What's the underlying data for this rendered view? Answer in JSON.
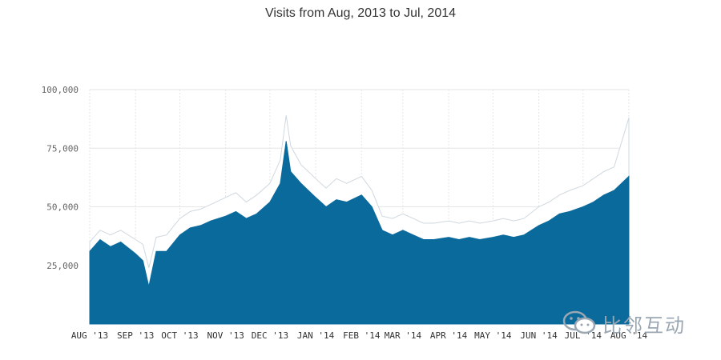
{
  "chart_data": {
    "type": "area",
    "title": "Visits from Aug, 2013 to Jul, 2014",
    "xlabel": "",
    "ylabel": "",
    "ylim": [
      0,
      100000
    ],
    "y_ticks": [
      "100,000",
      "75,000",
      "50,000",
      "25,000"
    ],
    "y_tick_values": [
      100000,
      75000,
      50000,
      25000
    ],
    "x_ticks": [
      "AUG '13",
      "SEP '13",
      "OCT '13",
      "NOV '13",
      "DEC '13",
      "JAN '14",
      "FEB '14",
      "MAR '14",
      "APR '14",
      "MAY '14",
      "JUN '14",
      "JUL '14",
      "AUG '14"
    ],
    "grid": true,
    "series": [
      {
        "color": "#0b6a9c",
        "points": [
          [
            "2013-08-01",
            31000
          ],
          [
            "2013-08-08",
            36000
          ],
          [
            "2013-08-15",
            33000
          ],
          [
            "2013-08-22",
            35000
          ],
          [
            "2013-09-01",
            30000
          ],
          [
            "2013-09-06",
            27000
          ],
          [
            "2013-09-10",
            16000
          ],
          [
            "2013-09-15",
            31000
          ],
          [
            "2013-09-22",
            31000
          ],
          [
            "2013-10-01",
            38000
          ],
          [
            "2013-10-08",
            41000
          ],
          [
            "2013-10-15",
            42000
          ],
          [
            "2013-10-22",
            44000
          ],
          [
            "2013-11-01",
            46000
          ],
          [
            "2013-11-08",
            48000
          ],
          [
            "2013-11-15",
            45000
          ],
          [
            "2013-11-22",
            47000
          ],
          [
            "2013-12-01",
            52000
          ],
          [
            "2013-12-08",
            60000
          ],
          [
            "2013-12-12",
            78000
          ],
          [
            "2013-12-15",
            65000
          ],
          [
            "2013-12-22",
            60000
          ],
          [
            "2014-01-01",
            54000
          ],
          [
            "2014-01-08",
            50000
          ],
          [
            "2014-01-15",
            53000
          ],
          [
            "2014-01-22",
            52000
          ],
          [
            "2014-02-01",
            55000
          ],
          [
            "2014-02-08",
            50000
          ],
          [
            "2014-02-15",
            40000
          ],
          [
            "2014-02-22",
            38000
          ],
          [
            "2014-03-01",
            40000
          ],
          [
            "2014-03-08",
            38000
          ],
          [
            "2014-03-15",
            36000
          ],
          [
            "2014-03-22",
            36000
          ],
          [
            "2014-04-01",
            37000
          ],
          [
            "2014-04-08",
            36000
          ],
          [
            "2014-04-15",
            37000
          ],
          [
            "2014-04-22",
            36000
          ],
          [
            "2014-05-01",
            37000
          ],
          [
            "2014-05-08",
            38000
          ],
          [
            "2014-05-15",
            37000
          ],
          [
            "2014-05-22",
            38000
          ],
          [
            "2014-06-01",
            42000
          ],
          [
            "2014-06-08",
            44000
          ],
          [
            "2014-06-15",
            47000
          ],
          [
            "2014-06-22",
            48000
          ],
          [
            "2014-07-01",
            50000
          ],
          [
            "2014-07-08",
            52000
          ],
          [
            "2014-07-15",
            55000
          ],
          [
            "2014-07-22",
            57000
          ],
          [
            "2014-08-01",
            63000
          ]
        ]
      },
      {
        "color": "#ffffff",
        "points": [
          [
            "2013-08-01",
            35000
          ],
          [
            "2013-08-08",
            40000
          ],
          [
            "2013-08-15",
            38000
          ],
          [
            "2013-08-22",
            40000
          ],
          [
            "2013-09-01",
            36000
          ],
          [
            "2013-09-06",
            34000
          ],
          [
            "2013-09-10",
            24000
          ],
          [
            "2013-09-15",
            37000
          ],
          [
            "2013-09-22",
            38000
          ],
          [
            "2013-10-01",
            45000
          ],
          [
            "2013-10-08",
            48000
          ],
          [
            "2013-10-15",
            49000
          ],
          [
            "2013-10-22",
            51000
          ],
          [
            "2013-11-01",
            54000
          ],
          [
            "2013-11-08",
            56000
          ],
          [
            "2013-11-15",
            52000
          ],
          [
            "2013-11-22",
            55000
          ],
          [
            "2013-12-01",
            60000
          ],
          [
            "2013-12-08",
            70000
          ],
          [
            "2013-12-12",
            89000
          ],
          [
            "2013-12-15",
            76000
          ],
          [
            "2013-12-22",
            68000
          ],
          [
            "2014-01-01",
            62000
          ],
          [
            "2014-01-08",
            58000
          ],
          [
            "2014-01-15",
            62000
          ],
          [
            "2014-01-22",
            60000
          ],
          [
            "2014-02-01",
            63000
          ],
          [
            "2014-02-08",
            57000
          ],
          [
            "2014-02-15",
            46000
          ],
          [
            "2014-02-22",
            45000
          ],
          [
            "2014-03-01",
            47000
          ],
          [
            "2014-03-08",
            45000
          ],
          [
            "2014-03-15",
            43000
          ],
          [
            "2014-03-22",
            43000
          ],
          [
            "2014-04-01",
            44000
          ],
          [
            "2014-04-08",
            43000
          ],
          [
            "2014-04-15",
            44000
          ],
          [
            "2014-04-22",
            43000
          ],
          [
            "2014-05-01",
            44000
          ],
          [
            "2014-05-08",
            45000
          ],
          [
            "2014-05-15",
            44000
          ],
          [
            "2014-05-22",
            45000
          ],
          [
            "2014-06-01",
            50000
          ],
          [
            "2014-06-08",
            52000
          ],
          [
            "2014-06-15",
            55000
          ],
          [
            "2014-06-22",
            57000
          ],
          [
            "2014-07-01",
            59000
          ],
          [
            "2014-07-08",
            62000
          ],
          [
            "2014-07-15",
            65000
          ],
          [
            "2014-07-22",
            67000
          ],
          [
            "2014-08-01",
            88000
          ]
        ]
      }
    ]
  },
  "watermark": {
    "text": "比邻互动",
    "icon": "wechat-icon"
  },
  "colors": {
    "area": "#0b6a9c",
    "grid": "#e6e6e6",
    "axis_text": "#666666"
  }
}
